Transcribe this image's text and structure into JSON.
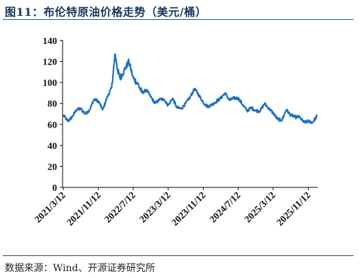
{
  "title": "图11：布伦特原油价格走势（美元/桶）",
  "source": "数据来源：Wind、开源证券研究所",
  "chart_data": {
    "type": "line",
    "title": "",
    "xlabel": "",
    "ylabel": "",
    "ylim": [
      0,
      140
    ],
    "yticks": [
      0,
      20,
      40,
      60,
      80,
      100,
      120,
      140
    ],
    "xticks": [
      "2021/3/12",
      "2021/11/12",
      "2022/7/12",
      "2023/3/12",
      "2023/11/12",
      "2024/7/12",
      "2025/3/12",
      "2025/11/12"
    ],
    "grid": false,
    "legend": "none",
    "colors": {
      "line": "#1f6fbf",
      "axis": "#000000",
      "title": "#17375e"
    },
    "series": [
      {
        "name": "",
        "x": [
          "2021-03-12",
          "2021-04-12",
          "2021-05-12",
          "2021-06-12",
          "2021-07-12",
          "2021-08-12",
          "2021-09-12",
          "2021-10-12",
          "2021-11-12",
          "2021-12-12",
          "2022-01-12",
          "2022-02-12",
          "2022-03-08",
          "2022-03-25",
          "2022-04-12",
          "2022-05-12",
          "2022-06-12",
          "2022-07-12",
          "2022-08-12",
          "2022-09-12",
          "2022-10-12",
          "2022-11-12",
          "2022-12-12",
          "2023-01-12",
          "2023-02-12",
          "2023-03-12",
          "2023-04-12",
          "2023-05-12",
          "2023-06-12",
          "2023-07-12",
          "2023-08-12",
          "2023-09-12",
          "2023-10-12",
          "2023-11-12",
          "2023-12-12",
          "2024-01-12",
          "2024-02-12",
          "2024-03-12",
          "2024-04-12",
          "2024-05-12",
          "2024-06-12",
          "2024-07-12",
          "2024-08-12",
          "2024-09-12",
          "2024-10-12",
          "2024-11-12",
          "2024-12-12",
          "2025-01-12",
          "2025-02-12",
          "2025-03-12",
          "2025-04-12",
          "2025-05-12",
          "2025-06-12",
          "2025-07-12",
          "2025-08-12",
          "2025-09-12",
          "2025-10-12",
          "2025-11-12",
          "2025-12-12",
          "2026-01-12"
        ],
        "values": [
          69,
          63,
          67,
          74,
          75,
          70,
          74,
          84,
          82,
          74,
          86,
          95,
          127,
          112,
          104,
          112,
          120,
          104,
          99,
          90,
          93,
          86,
          80,
          84,
          84,
          78,
          85,
          76,
          75,
          80,
          86,
          94,
          88,
          81,
          77,
          79,
          82,
          85,
          90,
          83,
          85,
          85,
          79,
          73,
          76,
          73,
          73,
          80,
          75,
          71,
          65,
          64,
          74,
          69,
          67,
          67,
          62,
          63,
          62,
          68
        ]
      }
    ]
  }
}
